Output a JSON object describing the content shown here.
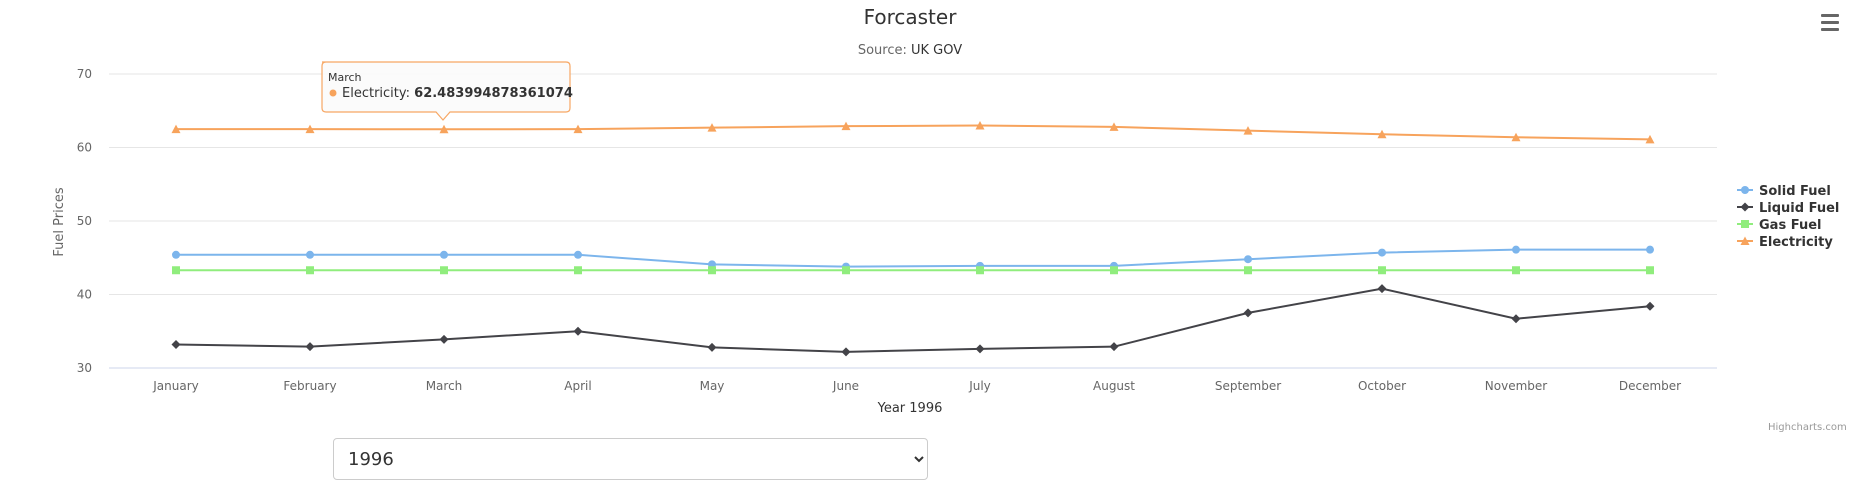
{
  "menu_icon": "hamburger-icon",
  "credits": "Highcharts.com",
  "year_select": {
    "selected": "1996",
    "options": [
      "1996"
    ]
  },
  "tooltip": {
    "category": "March",
    "series": "Electricity",
    "value": "62.483994878361074",
    "color": "#f7a35c"
  },
  "chart_data": {
    "type": "line",
    "title": "Forcaster",
    "subtitle_prefix": "Source: ",
    "subtitle_link": "UK GOV",
    "xlabel": "Year 1996",
    "ylabel": "Fuel Prices",
    "ylim": [
      30,
      70
    ],
    "yticks": [
      30,
      40,
      50,
      60,
      70
    ],
    "grid": true,
    "legend_position": "right",
    "categories": [
      "January",
      "February",
      "March",
      "April",
      "May",
      "June",
      "July",
      "August",
      "September",
      "October",
      "November",
      "December"
    ],
    "series": [
      {
        "name": "Solid Fuel",
        "color": "#7cb5ec",
        "marker": "circle",
        "values": [
          45.4,
          45.4,
          45.4,
          45.4,
          44.1,
          43.8,
          43.9,
          43.9,
          44.8,
          45.7,
          46.1,
          46.1
        ]
      },
      {
        "name": "Liquid Fuel",
        "color": "#434348",
        "marker": "diamond",
        "values": [
          33.2,
          32.9,
          33.9,
          35.0,
          32.8,
          32.2,
          32.6,
          32.9,
          37.5,
          40.8,
          36.7,
          38.4
        ]
      },
      {
        "name": "Gas Fuel",
        "color": "#90ed7d",
        "marker": "square",
        "values": [
          43.3,
          43.3,
          43.3,
          43.3,
          43.3,
          43.3,
          43.3,
          43.3,
          43.3,
          43.3,
          43.3,
          43.3
        ]
      },
      {
        "name": "Electricity",
        "color": "#f7a35c",
        "marker": "triangle",
        "values": [
          62.5,
          62.5,
          62.48,
          62.5,
          62.7,
          62.9,
          63.0,
          62.8,
          62.3,
          61.8,
          61.4,
          61.1
        ]
      }
    ]
  }
}
